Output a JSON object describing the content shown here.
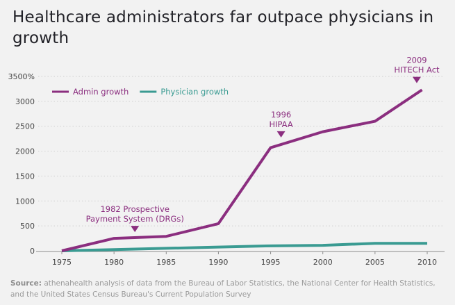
{
  "chart_data": {
    "type": "line",
    "title": "Healthcare administrators far outpace physicians in growth",
    "xlabel": "",
    "ylabel": "",
    "x": [
      1975,
      1980,
      1985,
      1990,
      1995,
      2000,
      2005,
      2010
    ],
    "x_ticks": [
      "1975",
      "1980",
      "1985",
      "1990",
      "1995",
      "2000",
      "2005",
      "2010"
    ],
    "y_ticks": [
      "0",
      "500",
      "1000",
      "1500",
      "2000",
      "2500",
      "3000",
      "3500%"
    ],
    "ylim": [
      0,
      3500
    ],
    "xlim": [
      1975,
      2010
    ],
    "grid": "horizontal dotted",
    "legend_position": "top-left",
    "series": [
      {
        "name": "Admin growth",
        "color": "#8b2e7f",
        "points": [
          [
            1975,
            0
          ],
          [
            1980,
            250
          ],
          [
            1985,
            290
          ],
          [
            1990,
            545
          ],
          [
            1995,
            2070
          ],
          [
            2000,
            2390
          ],
          [
            2005,
            2600
          ],
          [
            2009.5,
            3230
          ]
        ]
      },
      {
        "name": "Physician growth",
        "color": "#3a9b92",
        "points": [
          [
            1975,
            0
          ],
          [
            1980,
            25
          ],
          [
            1985,
            50
          ],
          [
            1990,
            75
          ],
          [
            1995,
            100
          ],
          [
            2000,
            110
          ],
          [
            2005,
            150
          ],
          [
            2010,
            150
          ]
        ]
      }
    ],
    "annotations": [
      {
        "lines": [
          "1982 Prospective",
          "Payment System (DRGs)"
        ],
        "x": 1982,
        "y": 250
      },
      {
        "lines": [
          "1996",
          "HIPAA"
        ],
        "x": 1996,
        "y": 2150
      },
      {
        "lines": [
          "2009",
          "HITECH Act"
        ],
        "x": 2009,
        "y": 3240
      }
    ]
  },
  "source": {
    "label": "Source:",
    "text": " athenahealth analysis of data from the Bureau of Labor Statistics, the National Center for Health Statistics, and the United States Census Bureau's Current Population Survey"
  }
}
